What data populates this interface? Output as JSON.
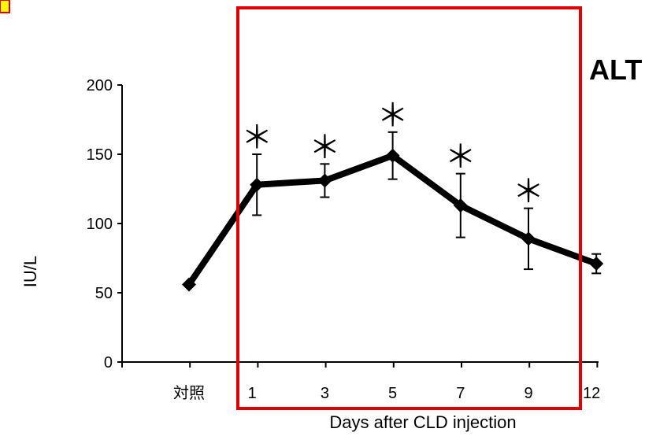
{
  "chart_data": {
    "type": "line",
    "title": "ALT",
    "xlabel": "Days after CLD injection",
    "ylabel": "IU/L",
    "categories": [
      "対照",
      "1",
      "3",
      "5",
      "7",
      "9",
      "12"
    ],
    "series": [
      {
        "values": [
          56,
          128,
          131,
          149,
          113,
          89,
          71
        ],
        "error": [
          0,
          22,
          12,
          17,
          23,
          22,
          7
        ],
        "significant": [
          false,
          true,
          true,
          true,
          true,
          true,
          false
        ]
      }
    ],
    "significance_symbol": "＊",
    "yticks": [
      "0",
      "50",
      "100",
      "150",
      "200"
    ],
    "ylim": [
      0,
      200
    ],
    "grid": false,
    "highlight_box": {
      "color": "#e00000"
    },
    "corner_marker_color": "#ffff00"
  }
}
